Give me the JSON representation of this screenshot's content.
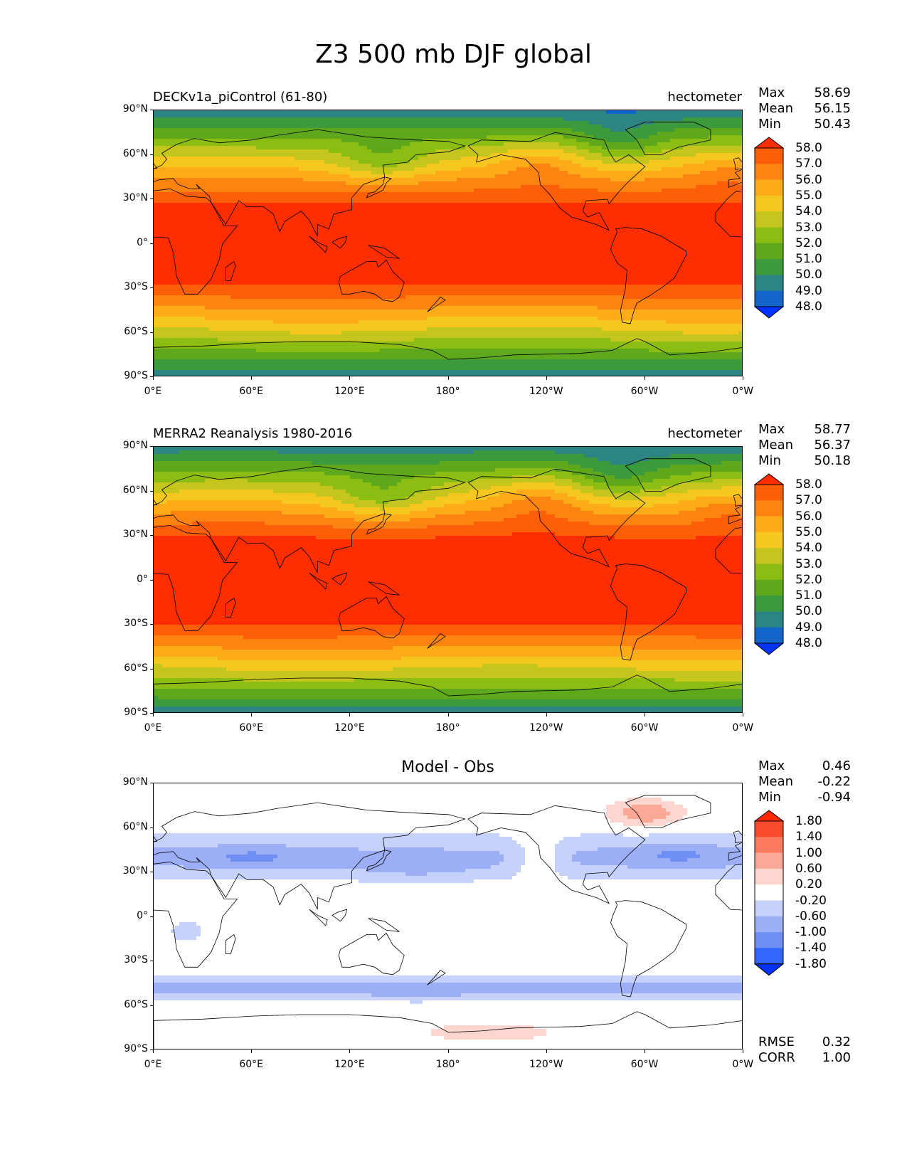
{
  "title": "Z3 500 mb DJF global",
  "lat_ticks": [
    "90°N",
    "60°N",
    "30°N",
    "0°",
    "30°S",
    "60°S",
    "90°S"
  ],
  "lon_ticks": [
    "0°E",
    "60°E",
    "120°E",
    "180°",
    "120°W",
    "60°W",
    "0°W"
  ],
  "panels": [
    {
      "left_title": "DECKv1a_piControl (61-80)",
      "right_title": "hectometer",
      "center_title": "",
      "stats": [
        [
          "Max",
          "58.69"
        ],
        [
          "Mean",
          "56.15"
        ],
        [
          "Min",
          "50.43"
        ]
      ],
      "colorbar": {
        "colors": [
          "#0033ff",
          "#1366c9",
          "#2d8583",
          "#3a9a3c",
          "#5fa81c",
          "#8bbd13",
          "#c4c51d",
          "#f5c71f",
          "#fdab18",
          "#fd8410",
          "#fd5e08",
          "#ff2e00"
        ],
        "labels": [
          "48.0",
          "49.0",
          "50.0",
          "51.0",
          "52.0",
          "53.0",
          "54.0",
          "55.0",
          "56.0",
          "57.0",
          "58.0"
        ]
      },
      "field": "model"
    },
    {
      "left_title": "MERRA2 Reanalysis 1980-2016",
      "right_title": "hectometer",
      "center_title": "",
      "stats": [
        [
          "Max",
          "58.77"
        ],
        [
          "Mean",
          "56.37"
        ],
        [
          "Min",
          "50.18"
        ]
      ],
      "colorbar": {
        "colors": [
          "#0033ff",
          "#1366c9",
          "#2d8583",
          "#3a9a3c",
          "#5fa81c",
          "#8bbd13",
          "#c4c51d",
          "#f5c71f",
          "#fdab18",
          "#fd8410",
          "#fd5e08",
          "#ff2e00"
        ],
        "labels": [
          "48.0",
          "49.0",
          "50.0",
          "51.0",
          "52.0",
          "53.0",
          "54.0",
          "55.0",
          "56.0",
          "57.0",
          "58.0"
        ]
      },
      "field": "obs"
    },
    {
      "left_title": "",
      "right_title": "",
      "center_title": "Model - Obs",
      "stats": [
        [
          "Max",
          "0.46"
        ],
        [
          "Mean",
          "-0.22"
        ],
        [
          "Min",
          "-0.94"
        ]
      ],
      "colorbar": {
        "colors": [
          "#0033ff",
          "#3366ff",
          "#6f8ef6",
          "#9caef5",
          "#c6d2fa",
          "#ffffff",
          "#fdd6d0",
          "#fca896",
          "#fb7a5e",
          "#fa4b2e",
          "#ff2800"
        ],
        "labels": [
          "-1.80",
          "-1.40",
          "-1.00",
          "-0.60",
          "-0.20",
          "0.20",
          "0.60",
          "1.00",
          "1.40",
          "1.80"
        ]
      },
      "extra_stats": [
        [
          "RMSE",
          "0.32"
        ],
        [
          "CORR",
          "1.00"
        ]
      ],
      "field": "diff"
    }
  ]
}
